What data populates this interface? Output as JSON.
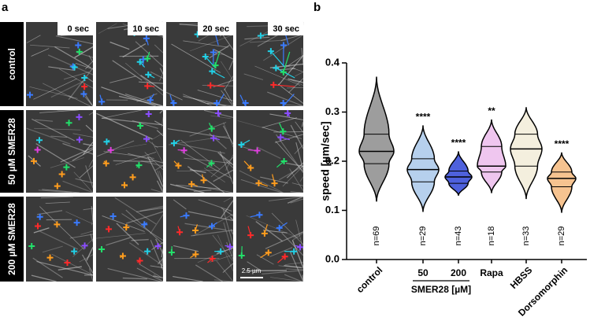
{
  "panel_a": {
    "label": "a",
    "columns": [
      "0 sec",
      "10 sec",
      "20 sec",
      "30 sec"
    ],
    "rows": [
      "control",
      "50 µM SMER28",
      "200 µM SMER28"
    ],
    "scale_bar": "2.5 µm"
  },
  "chart_data": {
    "type": "violin",
    "panel_label": "b",
    "ylabel": "speed [µm/sec]",
    "ylim": [
      0,
      0.4
    ],
    "yticks": [
      {
        "value": 0,
        "label": "0.0"
      },
      0.1,
      0.2,
      0.3,
      0.4
    ],
    "categories": [
      "control",
      "50",
      "200",
      "Rapa",
      "HBSS",
      "Dorsomorphin"
    ],
    "group_label": "SMER28 [µM]",
    "colors": [
      "#8c8c8c",
      "#a9c8ea",
      "#2f45d6",
      "#ecbcec",
      "#f2ecd8",
      "#f4b87c"
    ],
    "min": [
      0.118,
      0.097,
      0.13,
      0.135,
      0.123,
      0.095
    ],
    "q1": [
      0.195,
      0.158,
      0.155,
      0.178,
      0.19,
      0.148
    ],
    "median": [
      0.22,
      0.183,
      0.168,
      0.19,
      0.225,
      0.165
    ],
    "q3": [
      0.255,
      0.205,
      0.18,
      0.23,
      0.255,
      0.178
    ],
    "max": [
      0.372,
      0.273,
      0.22,
      0.285,
      0.31,
      0.218
    ],
    "n_labels": [
      "n=69",
      "n=29",
      "n=43",
      "n=18",
      "n=33",
      "n=29"
    ],
    "significance": [
      null,
      "****",
      "****",
      "**",
      null,
      "****"
    ]
  }
}
